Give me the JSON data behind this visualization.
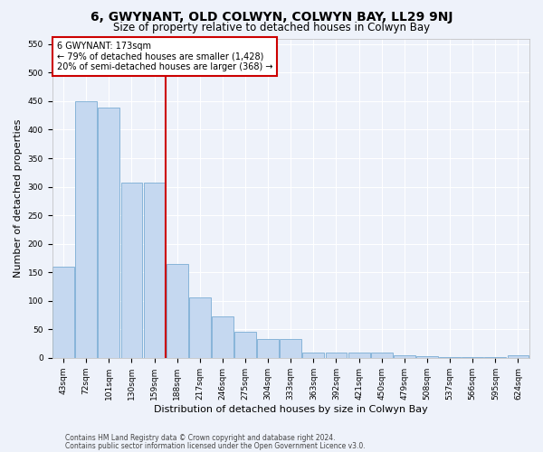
{
  "title": "6, GWYNANT, OLD COLWYN, COLWYN BAY, LL29 9NJ",
  "subtitle": "Size of property relative to detached houses in Colwyn Bay",
  "xlabel": "Distribution of detached houses by size in Colwyn Bay",
  "ylabel": "Number of detached properties",
  "categories": [
    "43sqm",
    "72sqm",
    "101sqm",
    "130sqm",
    "159sqm",
    "188sqm",
    "217sqm",
    "246sqm",
    "275sqm",
    "304sqm",
    "333sqm",
    "363sqm",
    "392sqm",
    "421sqm",
    "450sqm",
    "479sqm",
    "508sqm",
    "537sqm",
    "566sqm",
    "595sqm",
    "624sqm"
  ],
  "values": [
    160,
    450,
    438,
    307,
    307,
    165,
    106,
    73,
    45,
    33,
    33,
    10,
    10,
    9,
    9,
    5,
    3,
    2,
    2,
    1,
    5
  ],
  "bar_color": "#c5d8f0",
  "bar_edge_color": "#7aadd4",
  "vline_color": "#cc0000",
  "vline_x": 4.5,
  "annotation_text": "6 GWYNANT: 173sqm\n← 79% of detached houses are smaller (1,428)\n20% of semi-detached houses are larger (368) →",
  "annotation_box_color": "#ffffff",
  "annotation_box_edge": "#cc0000",
  "ylim": [
    0,
    560
  ],
  "yticks": [
    0,
    50,
    100,
    150,
    200,
    250,
    300,
    350,
    400,
    450,
    500,
    550
  ],
  "footer1": "Contains HM Land Registry data © Crown copyright and database right 2024.",
  "footer2": "Contains public sector information licensed under the Open Government Licence v3.0.",
  "bg_color": "#eef2fa",
  "grid_color": "#ffffff",
  "title_fontsize": 10,
  "subtitle_fontsize": 8.5,
  "tick_fontsize": 6.5,
  "ylabel_fontsize": 8,
  "xlabel_fontsize": 8,
  "footer_fontsize": 5.5,
  "annot_fontsize": 7
}
